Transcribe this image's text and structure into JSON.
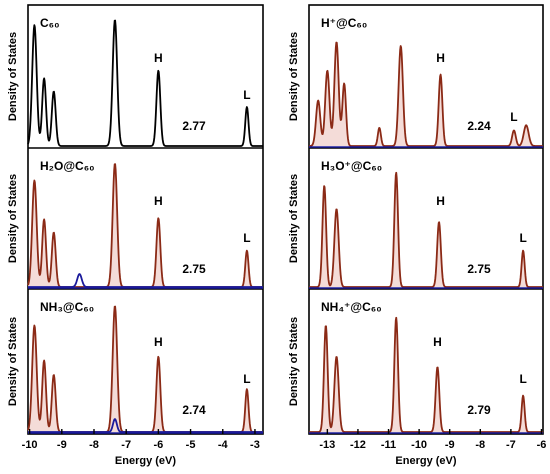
{
  "chart_data": [
    {
      "type": "line",
      "column": "left",
      "row": 0,
      "label": "C₆₀",
      "xlim": [
        -10.05,
        -2.75
      ],
      "xticks": [
        -10,
        -9,
        -8,
        -7,
        -6,
        -5,
        -4,
        -3
      ],
      "xlabel": "Energy (eV)",
      "ylabel": "Density of States",
      "gap": "2.77",
      "homo_label": "H",
      "lumo_label": "L",
      "homo_pos": -6.0,
      "lumo_pos": -3.25,
      "series": [
        {
          "color": "#000000",
          "fill": "none",
          "peaks": [
            [
              -9.85,
              0.93,
              0.07
            ],
            [
              -9.55,
              0.52,
              0.06
            ],
            [
              -9.25,
              0.42,
              0.06
            ],
            [
              -7.35,
              0.97,
              0.07
            ],
            [
              -6.0,
              0.58,
              0.06
            ],
            [
              -3.25,
              0.3,
              0.05
            ]
          ]
        }
      ]
    },
    {
      "type": "line",
      "column": "left",
      "row": 1,
      "label": "H₂O@C₆₀",
      "xlim": [
        -10.05,
        -2.75
      ],
      "xticks": [
        -10,
        -9,
        -8,
        -7,
        -6,
        -5,
        -4,
        -3
      ],
      "xlabel": "Energy (eV)",
      "ylabel": "Density of States",
      "gap": "2.75",
      "homo_label": "H",
      "lumo_label": "L",
      "homo_pos": -6.0,
      "lumo_pos": -3.25,
      "series": [
        {
          "color": "#8b2a16",
          "fill": "#f4dcd8",
          "peaks": [
            [
              -9.85,
              0.82,
              0.07
            ],
            [
              -9.55,
              0.52,
              0.06
            ],
            [
              -9.25,
              0.42,
              0.06
            ],
            [
              -7.35,
              0.95,
              0.07
            ],
            [
              -6.0,
              0.53,
              0.06
            ],
            [
              -3.25,
              0.28,
              0.05
            ]
          ]
        },
        {
          "color": "#1b1b9c",
          "fill": "none",
          "peaks": [
            [
              -8.45,
              0.1,
              0.07
            ]
          ]
        }
      ]
    },
    {
      "type": "line",
      "column": "left",
      "row": 2,
      "label": "NH₃@C₆₀",
      "xlim": [
        -10.05,
        -2.75
      ],
      "xticks": [
        -10,
        -9,
        -8,
        -7,
        -6,
        -5,
        -4,
        -3
      ],
      "xlabel": "Energy (eV)",
      "ylabel": "Density of States",
      "gap": "2.74",
      "homo_label": "H",
      "lumo_label": "L",
      "homo_pos": -6.0,
      "lumo_pos": -3.25,
      "series": [
        {
          "color": "#8b2a16",
          "fill": "#f4dcd8",
          "peaks": [
            [
              -9.85,
              0.82,
              0.07
            ],
            [
              -9.55,
              0.55,
              0.06
            ],
            [
              -9.25,
              0.44,
              0.06
            ],
            [
              -7.35,
              0.97,
              0.07
            ],
            [
              -6.0,
              0.58,
              0.06
            ],
            [
              -3.25,
              0.33,
              0.05
            ]
          ]
        },
        {
          "color": "#1b1b9c",
          "fill": "none",
          "peaks": [
            [
              -7.35,
              0.1,
              0.06
            ]
          ]
        }
      ]
    },
    {
      "type": "line",
      "column": "right",
      "row": 0,
      "label": "H⁺@C₆₀",
      "xlim": [
        -13.6,
        -5.95
      ],
      "xticks": [
        -13,
        -12,
        -11,
        -10,
        -9,
        -8,
        -7,
        -6
      ],
      "xlabel": "Energy (eV)",
      "ylabel": "Density of States",
      "gap": "2.24",
      "homo_label": "H",
      "lumo_label": "L",
      "homo_pos": -9.3,
      "lumo_pos": -6.9,
      "series": [
        {
          "color": "#8b2a16",
          "fill": "#f4dcd8",
          "peaks": [
            [
              -13.3,
              0.35,
              0.07
            ],
            [
              -13.0,
              0.58,
              0.07
            ],
            [
              -12.7,
              0.8,
              0.07
            ],
            [
              -12.45,
              0.48,
              0.06
            ],
            [
              -11.3,
              0.14,
              0.05
            ],
            [
              -10.6,
              0.77,
              0.07
            ],
            [
              -9.3,
              0.55,
              0.06
            ],
            [
              -6.9,
              0.12,
              0.06
            ],
            [
              -6.5,
              0.16,
              0.08
            ]
          ]
        }
      ]
    },
    {
      "type": "line",
      "column": "right",
      "row": 1,
      "label": "H₃O⁺@C₆₀",
      "xlim": [
        -13.6,
        -5.95
      ],
      "xticks": [
        -13,
        -12,
        -11,
        -10,
        -9,
        -8,
        -7,
        -6
      ],
      "xlabel": "Energy (eV)",
      "ylabel": "Density of States",
      "gap": "2.75",
      "homo_label": "H",
      "lumo_label": "L",
      "homo_pos": -9.3,
      "lumo_pos": -6.6,
      "series": [
        {
          "color": "#8b2a16",
          "fill": "#f4dcd8",
          "peaks": [
            [
              -13.1,
              0.78,
              0.06
            ],
            [
              -12.7,
              0.6,
              0.07
            ],
            [
              -10.75,
              0.88,
              0.06
            ],
            [
              -9.35,
              0.5,
              0.06
            ],
            [
              -6.6,
              0.28,
              0.05
            ]
          ]
        }
      ]
    },
    {
      "type": "line",
      "column": "right",
      "row": 2,
      "label": "NH₄⁺@C₆₀",
      "xlim": [
        -13.6,
        -5.95
      ],
      "xticks": [
        -13,
        -12,
        -11,
        -10,
        -9,
        -8,
        -7,
        -6
      ],
      "xlabel": "Energy (eV)",
      "ylabel": "Density of States",
      "gap": "2.79",
      "homo_label": "H",
      "lumo_label": "L",
      "homo_pos": -9.4,
      "lumo_pos": -6.6,
      "series": [
        {
          "color": "#8b2a16",
          "fill": "#f4dcd8",
          "peaks": [
            [
              -13.05,
              0.82,
              0.06
            ],
            [
              -12.7,
              0.58,
              0.07
            ],
            [
              -10.75,
              0.88,
              0.06
            ],
            [
              -9.4,
              0.5,
              0.06
            ],
            [
              -6.6,
              0.28,
              0.05
            ]
          ]
        }
      ]
    }
  ]
}
